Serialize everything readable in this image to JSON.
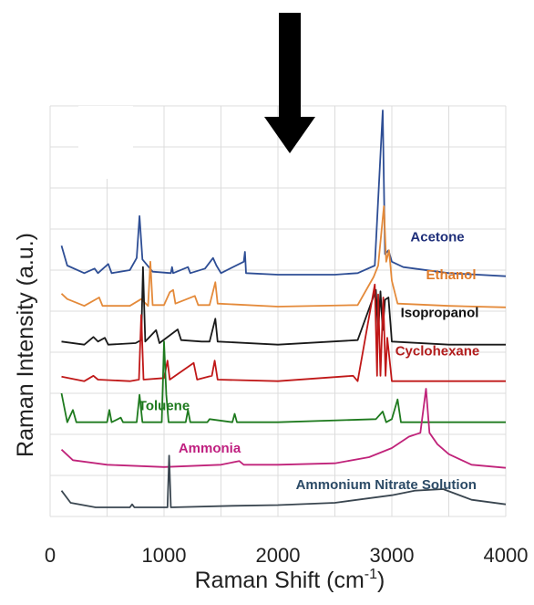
{
  "chart_data": {
    "type": "line",
    "title": "",
    "xlabel": "Raman Shift (cm",
    "xlabel_superscript": "-1",
    "xlabel_suffix": ")",
    "ylabel": "Raman Intensity (a.u.)",
    "xlim": [
      0,
      4000
    ],
    "xticks": [
      0,
      1000,
      2000,
      3000,
      4000
    ],
    "x_tick_labels": [
      "0",
      "1000",
      "2000",
      "3000",
      "4000"
    ],
    "grid": true,
    "legend": "labels placed next to each trace",
    "annotation": "down-arrow marker above the traces",
    "series": [
      {
        "name": "Acetone",
        "color": "#2e4e95",
        "label_color": "#1f2f7a",
        "label_at": [
          3400,
          1.72
        ],
        "baseline": 1.28,
        "points": [
          [
            100,
            1.66
          ],
          [
            150,
            1.4
          ],
          [
            300,
            1.3
          ],
          [
            390,
            1.36
          ],
          [
            420,
            1.3
          ],
          [
            510,
            1.42
          ],
          [
            540,
            1.3
          ],
          [
            700,
            1.34
          ],
          [
            760,
            1.5
          ],
          [
            785,
            2.05
          ],
          [
            810,
            1.48
          ],
          [
            900,
            1.32
          ],
          [
            1060,
            1.3
          ],
          [
            1070,
            1.38
          ],
          [
            1080,
            1.3
          ],
          [
            1210,
            1.38
          ],
          [
            1230,
            1.3
          ],
          [
            1360,
            1.36
          ],
          [
            1430,
            1.5
          ],
          [
            1460,
            1.4
          ],
          [
            1500,
            1.3
          ],
          [
            1700,
            1.45
          ],
          [
            1710,
            1.58
          ],
          [
            1720,
            1.3
          ],
          [
            2000,
            1.28
          ],
          [
            2500,
            1.28
          ],
          [
            2700,
            1.3
          ],
          [
            2850,
            1.4
          ],
          [
            2920,
            3.44
          ],
          [
            2940,
            1.55
          ],
          [
            2970,
            1.6
          ],
          [
            3000,
            1.45
          ],
          [
            3100,
            1.38
          ],
          [
            3500,
            1.3
          ],
          [
            4000,
            1.26
          ]
        ]
      },
      {
        "name": "Ethanol",
        "color": "#e48a3a",
        "label_color": "#e07b28",
        "label_at": [
          3520,
          1.22
        ],
        "baseline": 0.86,
        "points": [
          [
            100,
            1.03
          ],
          [
            150,
            0.96
          ],
          [
            300,
            0.87
          ],
          [
            430,
            0.98
          ],
          [
            460,
            0.87
          ],
          [
            700,
            0.87
          ],
          [
            800,
            0.96
          ],
          [
            860,
            0.87
          ],
          [
            880,
            1.45
          ],
          [
            900,
            0.88
          ],
          [
            1000,
            0.88
          ],
          [
            1050,
            1.05
          ],
          [
            1080,
            1.08
          ],
          [
            1100,
            0.9
          ],
          [
            1270,
            1.0
          ],
          [
            1300,
            0.88
          ],
          [
            1400,
            0.88
          ],
          [
            1450,
            1.18
          ],
          [
            1470,
            0.9
          ],
          [
            2000,
            0.86
          ],
          [
            2700,
            0.88
          ],
          [
            2840,
            1.25
          ],
          [
            2880,
            1.4
          ],
          [
            2930,
            2.18
          ],
          [
            2950,
            1.45
          ],
          [
            2975,
            1.6
          ],
          [
            3000,
            1.2
          ],
          [
            3050,
            0.9
          ],
          [
            3500,
            0.87
          ],
          [
            4000,
            0.85
          ]
        ]
      },
      {
        "name": "Isopropanol",
        "color": "#1a1a1a",
        "label_color": "#111111",
        "label_at": [
          3420,
          0.72
        ],
        "baseline": 0.36,
        "points": [
          [
            100,
            0.4
          ],
          [
            300,
            0.36
          ],
          [
            380,
            0.46
          ],
          [
            420,
            0.4
          ],
          [
            480,
            0.45
          ],
          [
            510,
            0.36
          ],
          [
            750,
            0.38
          ],
          [
            800,
            0.42
          ],
          [
            815,
            1.38
          ],
          [
            835,
            0.4
          ],
          [
            930,
            0.55
          ],
          [
            960,
            0.38
          ],
          [
            1120,
            0.56
          ],
          [
            1150,
            0.42
          ],
          [
            1330,
            0.4
          ],
          [
            1400,
            0.4
          ],
          [
            1450,
            0.7
          ],
          [
            1470,
            0.4
          ],
          [
            2000,
            0.36
          ],
          [
            2700,
            0.42
          ],
          [
            2860,
            1.08
          ],
          [
            2880,
            0.5
          ],
          [
            2900,
            1.06
          ],
          [
            2920,
            0.55
          ],
          [
            2940,
            0.95
          ],
          [
            2970,
            0.98
          ],
          [
            3000,
            0.4
          ],
          [
            3500,
            0.36
          ],
          [
            4000,
            0.36
          ]
        ]
      },
      {
        "name": "Cyclohexane",
        "color": "#c01818",
        "label_color": "#b21e1e",
        "label_at": [
          3400,
          0.22
        ],
        "baseline": -0.12,
        "points": [
          [
            100,
            -0.06
          ],
          [
            300,
            -0.12
          ],
          [
            380,
            -0.05
          ],
          [
            420,
            -0.1
          ],
          [
            700,
            -0.12
          ],
          [
            780,
            -0.1
          ],
          [
            800,
            0.75
          ],
          [
            820,
            -0.1
          ],
          [
            1000,
            -0.08
          ],
          [
            1030,
            0.15
          ],
          [
            1050,
            -0.1
          ],
          [
            1260,
            0.12
          ],
          [
            1290,
            -0.1
          ],
          [
            1420,
            -0.05
          ],
          [
            1445,
            0.15
          ],
          [
            1470,
            -0.1
          ],
          [
            2000,
            -0.12
          ],
          [
            2660,
            -0.05
          ],
          [
            2700,
            -0.12
          ],
          [
            2850,
            1.15
          ],
          [
            2870,
            -0.05
          ],
          [
            2880,
            1.02
          ],
          [
            2900,
            -0.05
          ],
          [
            2925,
            0.98
          ],
          [
            2945,
            -0.05
          ],
          [
            2960,
            0.45
          ],
          [
            3000,
            -0.12
          ],
          [
            3500,
            -0.12
          ],
          [
            4000,
            -0.12
          ]
        ]
      },
      {
        "name": "Toluene",
        "color": "#1e7a1e",
        "label_color": "#1e7a1e",
        "label_at": [
          1000,
          -0.5
        ],
        "baseline": -0.66,
        "points": [
          [
            100,
            -0.28
          ],
          [
            150,
            -0.66
          ],
          [
            200,
            -0.5
          ],
          [
            230,
            -0.66
          ],
          [
            500,
            -0.66
          ],
          [
            520,
            -0.5
          ],
          [
            540,
            -0.66
          ],
          [
            620,
            -0.6
          ],
          [
            640,
            -0.66
          ],
          [
            760,
            -0.66
          ],
          [
            785,
            -0.3
          ],
          [
            810,
            -0.66
          ],
          [
            980,
            -0.66
          ],
          [
            1000,
            0.4
          ],
          [
            1020,
            -0.3
          ],
          [
            1040,
            -0.66
          ],
          [
            1190,
            -0.66
          ],
          [
            1210,
            -0.5
          ],
          [
            1230,
            -0.66
          ],
          [
            1380,
            -0.66
          ],
          [
            1400,
            -0.62
          ],
          [
            1600,
            -0.66
          ],
          [
            1620,
            -0.55
          ],
          [
            1640,
            -0.66
          ],
          [
            2000,
            -0.66
          ],
          [
            2860,
            -0.62
          ],
          [
            2920,
            -0.52
          ],
          [
            2950,
            -0.66
          ],
          [
            3000,
            -0.62
          ],
          [
            3050,
            -0.36
          ],
          [
            3080,
            -0.66
          ],
          [
            3500,
            -0.66
          ],
          [
            4000,
            -0.66
          ]
        ]
      },
      {
        "name": "Ammonia",
        "color": "#c0237a",
        "label_color": "#c02080",
        "label_at": [
          1400,
          -1.06
        ],
        "baseline": -1.26,
        "points": [
          [
            100,
            -1.02
          ],
          [
            200,
            -1.16
          ],
          [
            500,
            -1.22
          ],
          [
            1000,
            -1.25
          ],
          [
            1500,
            -1.22
          ],
          [
            1660,
            -1.17
          ],
          [
            1700,
            -1.22
          ],
          [
            2000,
            -1.22
          ],
          [
            2500,
            -1.2
          ],
          [
            2800,
            -1.12
          ],
          [
            3000,
            -1.0
          ],
          [
            3150,
            -0.85
          ],
          [
            3250,
            -0.8
          ],
          [
            3300,
            -0.22
          ],
          [
            3330,
            -0.8
          ],
          [
            3400,
            -0.95
          ],
          [
            3500,
            -1.08
          ],
          [
            3700,
            -1.22
          ],
          [
            4000,
            -1.26
          ]
        ]
      },
      {
        "name": "Ammonium Nitrate Solution",
        "color": "#3a4650",
        "label_color": "#2b4a66",
        "label_at": [
          2950,
          -1.54
        ],
        "baseline": -1.78,
        "points": [
          [
            100,
            -1.56
          ],
          [
            180,
            -1.72
          ],
          [
            400,
            -1.78
          ],
          [
            700,
            -1.78
          ],
          [
            720,
            -1.74
          ],
          [
            740,
            -1.78
          ],
          [
            1030,
            -1.78
          ],
          [
            1045,
            -1.1
          ],
          [
            1060,
            -1.78
          ],
          [
            1600,
            -1.76
          ],
          [
            2000,
            -1.75
          ],
          [
            2500,
            -1.72
          ],
          [
            3000,
            -1.62
          ],
          [
            3200,
            -1.56
          ],
          [
            3450,
            -1.54
          ],
          [
            3700,
            -1.68
          ],
          [
            4000,
            -1.74
          ]
        ]
      }
    ]
  }
}
